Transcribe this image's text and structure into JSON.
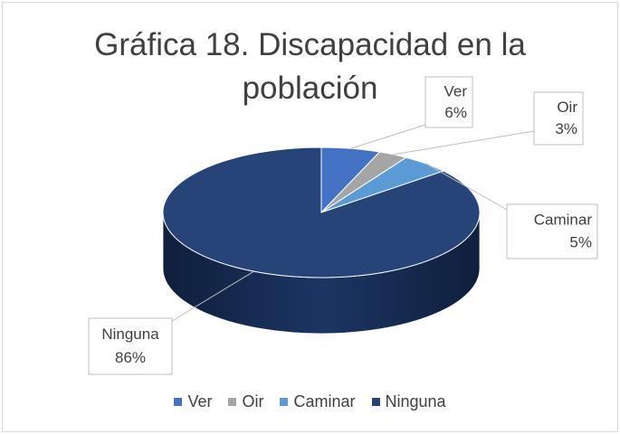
{
  "chart_data": {
    "type": "pie",
    "title": "Gráfica 18. Discapacidad en la población",
    "categories": [
      "Ver",
      "Oir",
      "Caminar",
      "Ninguna"
    ],
    "values": [
      6,
      3,
      5,
      86
    ],
    "value_labels": [
      "6%",
      "3%",
      "5%",
      "86%"
    ],
    "colors": [
      "#4472c4",
      "#a5a5a5",
      "#5b9bd5",
      "#264478"
    ],
    "legend": "bottom"
  }
}
